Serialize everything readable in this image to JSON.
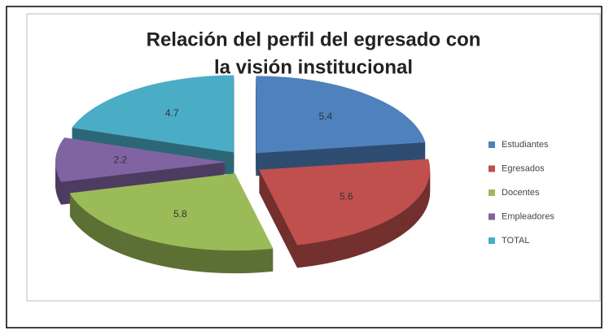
{
  "chart_data": {
    "type": "pie",
    "title": [
      "Relación del perfil del egresado con",
      "la visión institucional"
    ],
    "categories": [
      "Estudiantes",
      "Egresados",
      "Docentes",
      "Empleadores",
      "TOTAL"
    ],
    "values": [
      5.4,
      5.6,
      5.8,
      2.2,
      4.7
    ],
    "colors": [
      "#4f81bd",
      "#c0504d",
      "#9bbb59",
      "#8064a2",
      "#4bacc6"
    ],
    "legend": "right"
  }
}
